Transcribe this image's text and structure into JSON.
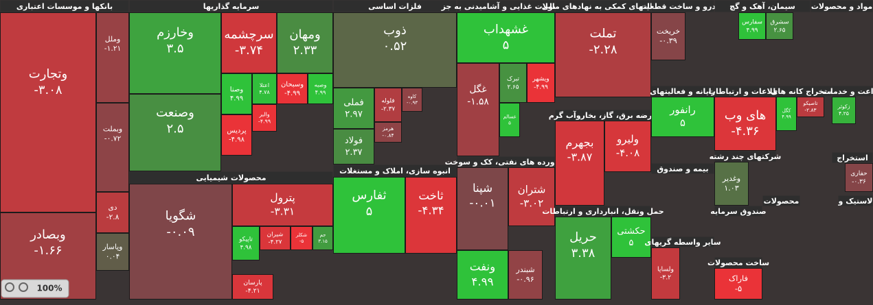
{
  "chart_data": {
    "type": "treemap",
    "colors": {
      "up": "#2fc23a",
      "down": "#ea3338",
      "flat": "#6a4a4c",
      "header": "#2e2e2e"
    },
    "zoom": "100%",
    "sectors": [
      {
        "name": "بانکها و موسسات اعتباری",
        "tiles": [
          {
            "name": "وتجارت",
            "value": -3.08,
            "value_label": "-۳.۰۸"
          },
          {
            "name": "وبصادر",
            "value": -1.66,
            "value_label": "-۱.۶۶"
          },
          {
            "name": "وملل",
            "value": -1.21,
            "value_label": "-۱.۲۱"
          },
          {
            "name": "وبملت",
            "value": -0.72,
            "value_label": "-۰.۷۲"
          },
          {
            "name": "دی",
            "value": -2.8,
            "value_label": "-۲.۸"
          },
          {
            "name": "وپاسار",
            "value": 0.04,
            "value_label": "۰.۰۴"
          }
        ]
      },
      {
        "name": "سرمایه گذاریها",
        "tiles": [
          {
            "name": "وخارزم",
            "value": 3.5,
            "value_label": "۳.۵"
          },
          {
            "name": "وصنعت",
            "value": 2.5,
            "value_label": "۲.۵"
          },
          {
            "name": "سرچشمه",
            "value": -3.74,
            "value_label": "-۳.۷۴"
          },
          {
            "name": "ومهان",
            "value": 2.33,
            "value_label": "۲.۳۳"
          },
          {
            "name": "وصنا",
            "value": 4.99,
            "value_label": "۴.۹۹"
          },
          {
            "name": "اعتلا",
            "value": 4.78,
            "value_label": "۴.۷۸"
          },
          {
            "name": "وسبحان",
            "value": -4.99,
            "value_label": "-۴.۹۹"
          },
          {
            "name": "وصبه",
            "value": 4.99,
            "value_label": "۴.۹۹"
          },
          {
            "name": "پردیس",
            "value": -4.98,
            "value_label": "-۴.۹۸"
          },
          {
            "name": "والبر",
            "value": -4.99,
            "value_label": "-۴.۹۹"
          }
        ]
      },
      {
        "name": "محصولات شیمیایی",
        "tiles": [
          {
            "name": "شگویا",
            "value": -0.09,
            "value_label": "-۰.۰۹"
          },
          {
            "name": "پترول",
            "value": -3.31,
            "value_label": "-۳.۳۱"
          },
          {
            "name": "تاپیکو",
            "value": 4.98,
            "value_label": "۴.۹۸"
          },
          {
            "name": "شیران",
            "value": -4.27,
            "value_label": "-۴.۲۷"
          },
          {
            "name": "شکلر",
            "value": -5,
            "value_label": "-۵"
          },
          {
            "name": "جم",
            "value": 3.15,
            "value_label": "۳.۱۵"
          },
          {
            "name": "پارسان",
            "value": -4.21,
            "value_label": "-۴.۲۱"
          }
        ]
      },
      {
        "name": "فلزات اساسی",
        "tiles": [
          {
            "name": "ذوب",
            "value": 0.52,
            "value_label": "۰.۵۲"
          },
          {
            "name": "فملی",
            "value": 2.97,
            "value_label": "۲.۹۷"
          },
          {
            "name": "فولاد",
            "value": 2.37,
            "value_label": "۲.۳۷"
          },
          {
            "name": "فلوله",
            "value": -2.37,
            "value_label": "-۲.۳۷"
          },
          {
            "name": "کاوه",
            "value": -0.93,
            "value_label": "-۰.۹۳"
          },
          {
            "name": "هرمز",
            "value": -0.84,
            "value_label": "-۰.۸۴"
          }
        ]
      },
      {
        "name": "انبوه سازی، املاک و مستغلات",
        "tiles": [
          {
            "name": "ثفارس",
            "value": 5,
            "value_label": "۵"
          },
          {
            "name": "ثاخت",
            "value": -4.34,
            "value_label": "-۴.۳۴"
          }
        ]
      },
      {
        "name": "محصولات غذایی و آشامیدنی به جز",
        "tiles": [
          {
            "name": "غشهداب",
            "value": 5,
            "value_label": "۵"
          },
          {
            "name": "غگل",
            "value": -1.58,
            "value_label": "-۱.۵۸"
          },
          {
            "name": "تبرک",
            "value": 2.65,
            "value_label": "۲.۶۵"
          },
          {
            "name": "ویشهر",
            "value": -4.99,
            "value_label": "-۴.۹۹"
          },
          {
            "name": "غسالم",
            "value": 5,
            "value_label": "۵"
          }
        ]
      },
      {
        "name": "فراورده های نفتی، کک و سوخت",
        "tiles": [
          {
            "name": "شپنا",
            "value": -0.01,
            "value_label": "-۰.۰۱"
          },
          {
            "name": "شتران",
            "value": -3.02,
            "value_label": "-۳.۰۲"
          },
          {
            "name": "ونفت",
            "value": 4.99,
            "value_label": "۴.۹۹"
          },
          {
            "name": "شبندر",
            "value": -0.96,
            "value_label": "-۰.۹۶"
          }
        ]
      },
      {
        "name": "فعالیتهای کمکی به نهادهای مالی",
        "tiles": [
          {
            "name": "تملت",
            "value": -2.28,
            "value_label": "-۲.۲۸"
          }
        ]
      },
      {
        "name": "عرضه برق، گاز، بخاروآب گرم",
        "tiles": [
          {
            "name": "بجهرم",
            "value": -3.87,
            "value_label": "-۳.۸۷"
          },
          {
            "name": "ولیرو",
            "value": -4.08,
            "value_label": "-۴.۰۸"
          }
        ]
      },
      {
        "name": "حمل ونقل، انبارداری و ارتباطات",
        "tiles": [
          {
            "name": "حریل",
            "value": 3.38,
            "value_label": "۳.۳۸"
          },
          {
            "name": "حکشتی",
            "value": 5,
            "value_label": "۵"
          }
        ]
      },
      {
        "name": "خودرو و ساخت قطعات",
        "tiles": [
          {
            "name": "خریخت",
            "value": -0.39,
            "value_label": "-۰.۳۹"
          }
        ]
      },
      {
        "name": "رایانه و فعالیتهای",
        "tiles": [
          {
            "name": "رانفور",
            "value": 5,
            "value_label": "۵"
          }
        ]
      },
      {
        "name": "شرکتهای چند رشته",
        "tiles": [
          {
            "name": "وغدیر",
            "value": 1.03,
            "value_label": "۱.۰۳"
          }
        ]
      },
      {
        "name": "بیمه و صندوق",
        "tiles": []
      },
      {
        "name": "سایر واسطه گریهای",
        "tiles": [
          {
            "name": "ولساپا",
            "value": -3.2,
            "value_label": "-۳.۲"
          }
        ]
      },
      {
        "name": "سیمان، آهک و گچ",
        "tiles": [
          {
            "name": "سفارس",
            "value": 4.99,
            "value_label": "۴.۹۹"
          },
          {
            "name": "سشرق",
            "value": 2.65,
            "value_label": "۲.۶۵"
          }
        ]
      },
      {
        "name": "اطلاعات و ارتباطات",
        "tiles": [
          {
            "name": "های وب",
            "value": -4.36,
            "value_label": "-۴.۳۶"
          }
        ]
      },
      {
        "name": "استخراج کانه های",
        "tiles": [
          {
            "name": "کگل",
            "value": 4.99,
            "value_label": "۴.۹۹"
          },
          {
            "name": "تاصیکو",
            "value": -2.83,
            "value_label": "-۲.۸۳"
          }
        ]
      },
      {
        "name": "زراعت و خدمات",
        "tiles": [
          {
            "name": "زکوثر",
            "value": 4.25,
            "value_label": "۴.۲۵"
          }
        ]
      },
      {
        "name": "مواد و محصولات",
        "tiles": []
      },
      {
        "name": "استخراج",
        "tiles": [
          {
            "name": "حفاری",
            "value": -0.36,
            "value_label": "-۰.۳۶"
          }
        ]
      },
      {
        "name": "صندوق سرمایه",
        "tiles": []
      },
      {
        "name": "ساخت محصولات",
        "tiles": [
          {
            "name": "فاراک",
            "value": -5,
            "value_label": "-۵"
          }
        ]
      },
      {
        "name": "محصولات",
        "tiles": []
      },
      {
        "name": "لاستیک و",
        "tiles": []
      }
    ]
  }
}
